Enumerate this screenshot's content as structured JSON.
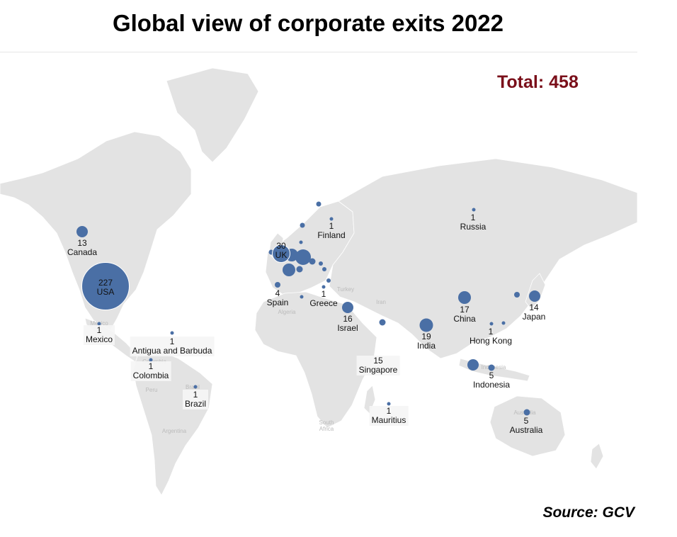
{
  "title": "Global view of corporate exits 2022",
  "total": "Total: 458",
  "source": "Source: GCV",
  "colors": {
    "bubble": "#4a6fa5",
    "land": "#e3e3e3",
    "total": "#7a0f1a",
    "text": "#111111"
  },
  "points": [
    {
      "country": "USA",
      "value": "227",
      "label": true
    },
    {
      "country": "Canada",
      "value": "13",
      "label": true
    },
    {
      "country": "UK",
      "value": "30",
      "label": true
    },
    {
      "country": "Mexico",
      "value": "1",
      "label": true
    },
    {
      "country": "Antigua and Barbuda",
      "value": "1",
      "label": true
    },
    {
      "country": "Colombia",
      "value": "1",
      "label": true
    },
    {
      "country": "Brazil",
      "value": "1",
      "label": true
    },
    {
      "country": "Spain",
      "value": "4",
      "label": true
    },
    {
      "country": "Greece",
      "value": "1",
      "label": true
    },
    {
      "country": "Finland",
      "value": "1",
      "label": true
    },
    {
      "country": "Israel",
      "value": "16",
      "label": true
    },
    {
      "country": "Singapore",
      "value": "15",
      "label": true
    },
    {
      "country": "Mauritius",
      "value": "1",
      "label": true
    },
    {
      "country": "Russia",
      "value": "1",
      "label": true
    },
    {
      "country": "India",
      "value": "19",
      "label": true
    },
    {
      "country": "China",
      "value": "17",
      "label": true
    },
    {
      "country": "Japan",
      "value": "14",
      "label": true
    },
    {
      "country": "Hong Kong",
      "value": "1",
      "label": true
    },
    {
      "country": "Indonesia",
      "value": "5",
      "label": true
    },
    {
      "country": "Australia",
      "value": "5",
      "label": true
    }
  ],
  "map_labels": [
    "Mexico",
    "Brazil",
    "Peru",
    "Argentina",
    "Colombia",
    "Algeria",
    "Turkey",
    "Iran",
    "South Africa",
    "Indonesia",
    "Australia"
  ]
}
